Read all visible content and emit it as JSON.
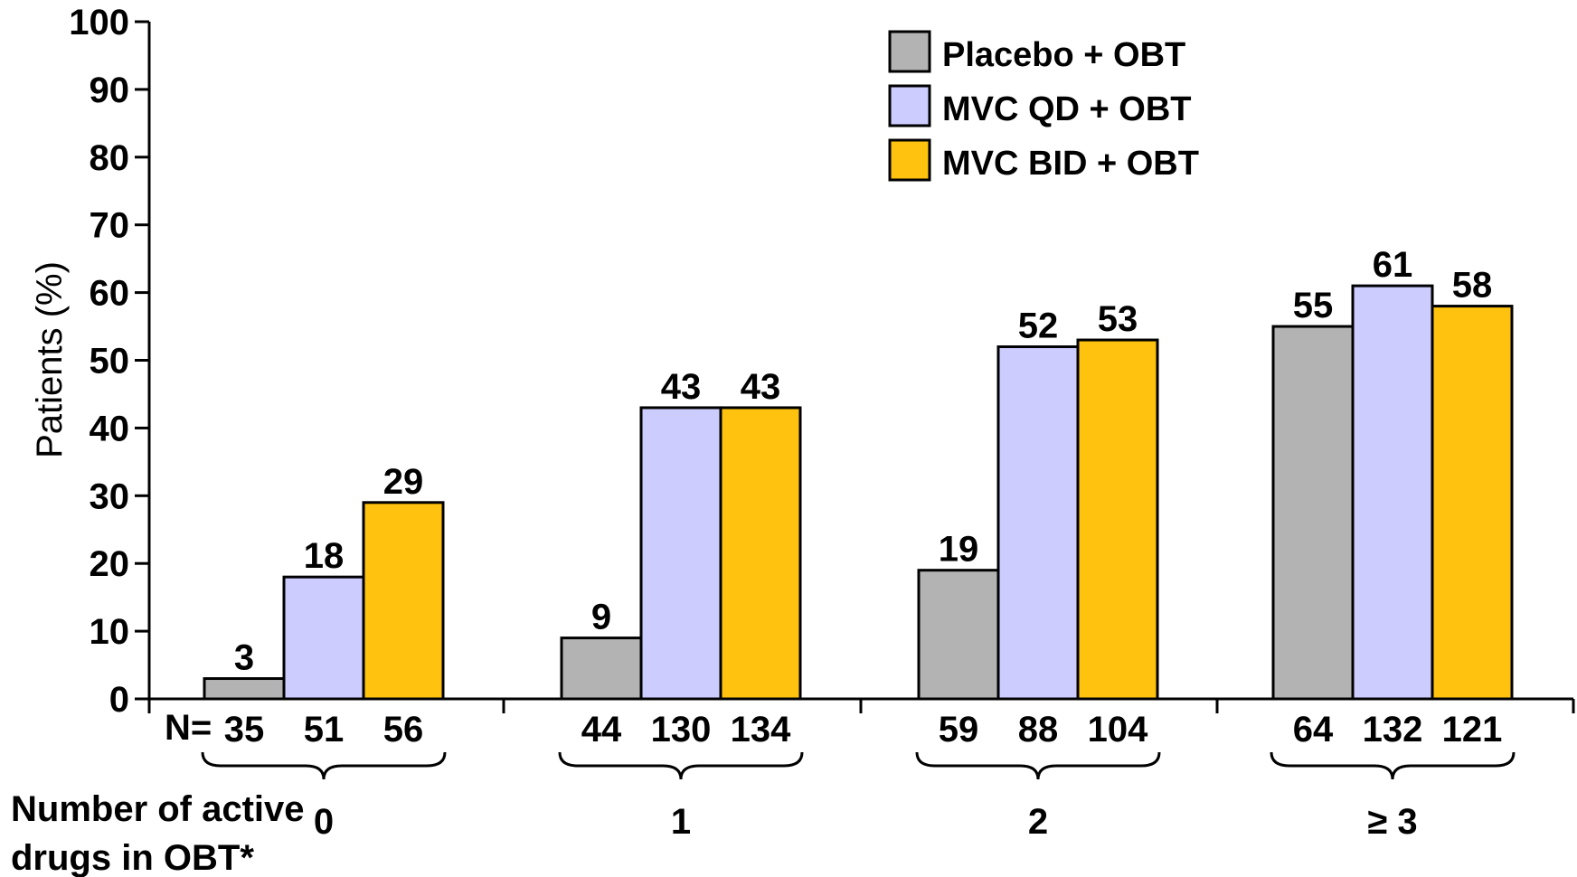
{
  "chart_data": {
    "type": "bar",
    "ylabel": "Patients (%)",
    "ylim": [
      0,
      100
    ],
    "yticks": [
      "0",
      "10",
      "20",
      "30",
      "40",
      "50",
      "60",
      "70",
      "80",
      "90",
      "100"
    ],
    "grid": false,
    "legend_position": "top-right",
    "xlabel_lines": [
      "Number of active",
      "drugs in OBT*"
    ],
    "n_prefix": "N=",
    "categories": [
      "0",
      "1",
      "2",
      "≥ 3"
    ],
    "series": [
      {
        "name": "Placebo + OBT",
        "color": "#b3b3b3",
        "values": [
          3,
          9,
          19,
          55
        ],
        "n": [
          "35",
          "44",
          "59",
          "64"
        ]
      },
      {
        "name": "MVC QD + OBT",
        "color": "#ccccff",
        "values": [
          18,
          43,
          52,
          61
        ],
        "n": [
          "51",
          "130",
          "88",
          "132"
        ]
      },
      {
        "name": "MVC BID + OBT",
        "color": "#ffc20e",
        "values": [
          29,
          43,
          53,
          58
        ],
        "n": [
          "56",
          "134",
          "104",
          "121"
        ]
      }
    ]
  }
}
